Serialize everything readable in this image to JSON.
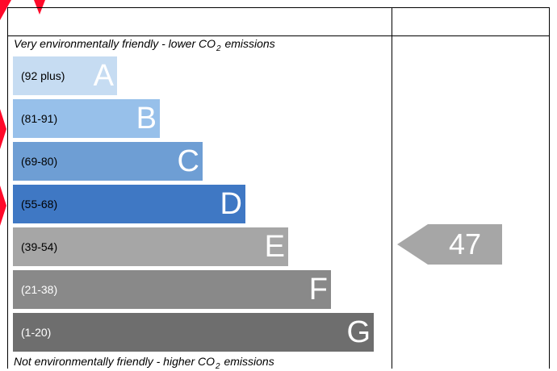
{
  "chart_data": {
    "type": "bar",
    "title_top": "Very environmentally friendly - lower CO",
    "title_top_suffix": "emissions",
    "title_bottom": "Not environmentally friendly - higher CO",
    "title_bottom_suffix": "emissions",
    "subscript": "2",
    "bands": [
      {
        "letter": "A",
        "range": "(92 plus)",
        "color": "#c6dcf2",
        "text_color": "#000000",
        "level": 1
      },
      {
        "letter": "B",
        "range": "(81-91)",
        "color": "#97c0ea",
        "text_color": "#000000",
        "level": 2
      },
      {
        "letter": "C",
        "range": "(69-80)",
        "color": "#6e9ed4",
        "text_color": "#000000",
        "level": 3
      },
      {
        "letter": "D",
        "range": "(55-68)",
        "color": "#3f78c4",
        "text_color": "#000000",
        "level": 4
      },
      {
        "letter": "E",
        "range": "(39-54)",
        "color": "#a6a6a6",
        "text_color": "#000000",
        "level": 5
      },
      {
        "letter": "F",
        "range": "(21-38)",
        "color": "#898989",
        "text_color": "#ffffff",
        "level": 6
      },
      {
        "letter": "G",
        "range": "(1-20)",
        "color": "#6e6e6e",
        "text_color": "#ffffff",
        "level": 7
      }
    ],
    "current_rating": "47",
    "current_color": "#a6a6a6"
  }
}
